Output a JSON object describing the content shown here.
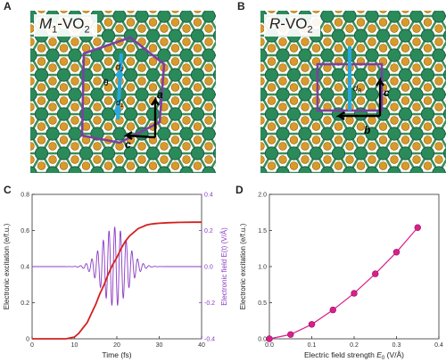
{
  "panels": {
    "a": {
      "letter": "A",
      "title_italic": "M",
      "title_sub1": "1",
      "title_rest": "-VO",
      "title_sub2": "2",
      "labels": {
        "d2": "d",
        "d2_sub": "2",
        "d1": "d",
        "d1_sub": "1",
        "theta": "θ",
        "a": "a",
        "c": "c"
      }
    },
    "b": {
      "letter": "B",
      "title_italic": "R",
      "title_rest": "-VO",
      "title_sub2": "2",
      "labels": {
        "dR": "d",
        "dR_sub": "R",
        "c": "c",
        "b": "b"
      }
    },
    "c": {
      "letter": "C"
    },
    "d": {
      "letter": "D"
    }
  },
  "colors": {
    "v_atom": "#2a8a5a",
    "o_atom": "#d89a2a",
    "bond": "#3c8f5a",
    "cell": "#7e3fa0",
    "dimer": "#2aa7e0",
    "excitation": "#d42020",
    "field": "#8a3bc4",
    "pink": "#d8208a"
  },
  "chart_data": [
    {
      "type": "line",
      "xlabel": "Time (fs)",
      "ylabel": "Electronic excitation (e/f.u.)",
      "y2label": "Electronic field E(t) (V/Å)",
      "xlim": [
        0,
        40
      ],
      "ylim": [
        0,
        0.8
      ],
      "y2lim": [
        -0.4,
        0.4
      ],
      "xticks": [
        0,
        10,
        20,
        30,
        40
      ],
      "yticks": [
        0,
        0.2,
        0.4,
        0.6,
        0.8
      ],
      "y2ticks": [
        -0.4,
        -0.2,
        0.0,
        0.2,
        0.4
      ],
      "series": [
        {
          "axis": "left",
          "color": "#d42020",
          "x": [
            0,
            8,
            10,
            11,
            12,
            13,
            14,
            15,
            16,
            17,
            18,
            19,
            20,
            21,
            22,
            23,
            24,
            25,
            26,
            27,
            28,
            29,
            30,
            32,
            35,
            38,
            40
          ],
          "y": [
            0,
            0.0,
            0.01,
            0.03,
            0.06,
            0.09,
            0.14,
            0.19,
            0.25,
            0.3,
            0.36,
            0.41,
            0.45,
            0.5,
            0.54,
            0.57,
            0.59,
            0.61,
            0.62,
            0.63,
            0.635,
            0.638,
            0.64,
            0.643,
            0.645,
            0.646,
            0.646
          ]
        },
        {
          "axis": "right",
          "color": "#8a3bc4",
          "envelope": {
            "center": 19.5,
            "width": 4.2,
            "amplitude": 0.22,
            "period": 1.35
          },
          "x_range": [
            0,
            40
          ]
        }
      ]
    },
    {
      "type": "scatter",
      "xlabel": "Electric field strength E0 (V/Å)",
      "xlabel_main": "Electric field strength ",
      "xlabel_E": "E",
      "xlabel_sub": "0",
      "xlabel_unit": " (V/Å)",
      "ylabel": "Electronic excitation (e/f.u.)",
      "xlim": [
        0,
        0.4
      ],
      "ylim": [
        0,
        2.0
      ],
      "xticks": [
        0.0,
        0.1,
        0.2,
        0.3,
        0.4
      ],
      "yticks": [
        0.0,
        0.5,
        1.0,
        1.5,
        2.0
      ],
      "series": [
        {
          "color": "#d8208a",
          "x": [
            0.0,
            0.05,
            0.1,
            0.15,
            0.2,
            0.25,
            0.3,
            0.35
          ],
          "y": [
            0.0,
            0.06,
            0.2,
            0.4,
            0.63,
            0.9,
            1.2,
            1.54
          ]
        }
      ]
    }
  ]
}
